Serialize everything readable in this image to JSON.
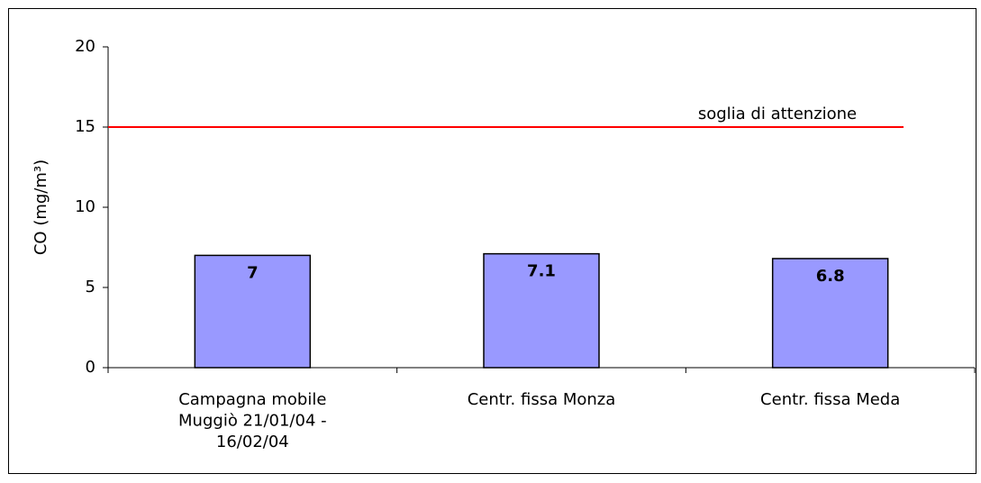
{
  "chart_data": {
    "type": "bar",
    "y_label": "CO (mg/m³)",
    "categories": [
      "Campagna mobile Muggiò 21/01/04 - 16/02/04",
      "Centr. fissa Monza",
      "Centr. fissa Meda"
    ],
    "values": [
      7,
      7.1,
      6.8
    ],
    "color": "#9999ff",
    "ylim": [
      0,
      20
    ],
    "yticks": [
      0,
      5,
      10,
      15,
      20
    ],
    "grid": false,
    "threshold": {
      "value": 15,
      "label": "soglia di attenzione",
      "color": "#ff0000"
    }
  }
}
